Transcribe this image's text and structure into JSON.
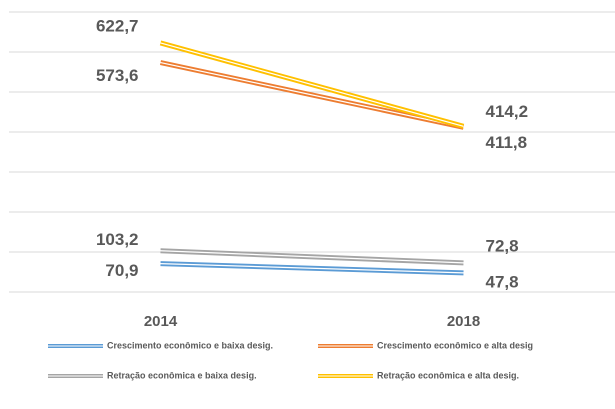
{
  "chart_data": {
    "type": "line",
    "categories": [
      "2014",
      "2018"
    ],
    "series": [
      {
        "name": "Crescimento econômico e baixa desig.",
        "color": "#5b9bd5",
        "values": [
          70.9,
          47.8
        ],
        "value_labels": [
          "70,9",
          "47,8"
        ]
      },
      {
        "name": "Crescimento econômico e alta desig",
        "color": "#ed7d31",
        "values": [
          573.6,
          411.8
        ],
        "value_labels": [
          "573,6",
          "411,8"
        ]
      },
      {
        "name": "Retração econômica e baixa desig.",
        "color": "#a5a5a5",
        "values": [
          103.2,
          72.8
        ],
        "value_labels": [
          "103,2",
          "72,8"
        ]
      },
      {
        "name": "Retração econômica e alta desig.",
        "color": "#ffc000",
        "values": [
          622.7,
          414.2
        ],
        "value_labels": [
          "622,7",
          "414,2"
        ]
      }
    ],
    "ylim": [
      0,
      700
    ],
    "yticks": [
      0,
      100,
      200,
      300,
      400,
      500,
      600,
      700
    ],
    "grid": true
  }
}
